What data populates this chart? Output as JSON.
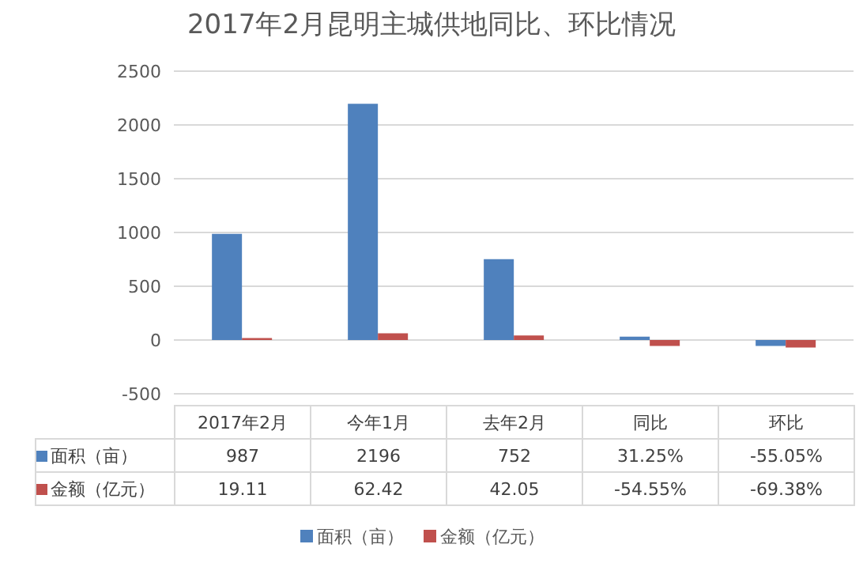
{
  "chart_data": {
    "type": "bar",
    "title": "2017年2月昆明主城供地同比、环比情况",
    "categories": [
      "2017年2月",
      "今年1月",
      "去年2月",
      "同比",
      "环比"
    ],
    "series": [
      {
        "name": "面积（亩）",
        "color": "#4f81bd",
        "values": [
          987,
          2196,
          752,
          31.25,
          -55.05
        ],
        "value_labels": [
          "987",
          "2196",
          "752",
          "31.25%",
          "-55.05%"
        ]
      },
      {
        "name": "金额（亿元）",
        "color": "#c0504d",
        "values": [
          19.11,
          62.42,
          42.05,
          -54.55,
          -69.38
        ],
        "value_labels": [
          "19.11",
          "62.42",
          "42.05",
          "-54.55%",
          "-69.38%"
        ]
      }
    ],
    "ylim": [
      -500,
      2500
    ],
    "yticks": [
      -500,
      0,
      500,
      1000,
      1500,
      2000,
      2500
    ],
    "grid": "y",
    "legend": "bottom"
  }
}
